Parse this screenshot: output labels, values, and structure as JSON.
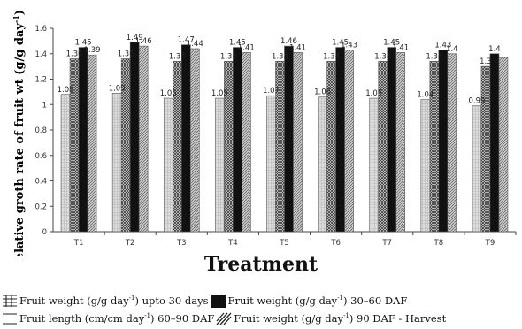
{
  "chart_data": {
    "type": "bar",
    "xlabel": "Treatment",
    "ylabel": "Relative groth rate of fruit wt (g/g day",
    "ylabel_sup": "-1",
    "ylabel_end": ")",
    "ylim": [
      0,
      1.6
    ],
    "yticks": [
      "0",
      "0.2",
      "0.4",
      "0.6",
      "0.8",
      "1",
      "1.2",
      "1.4",
      "1.6"
    ],
    "categories": [
      "T1",
      "T2",
      "T3",
      "T4",
      "T5",
      "T6",
      "T7",
      "T8",
      "T9"
    ],
    "series": [
      {
        "name": "Fruit weight (g/g day-1) upto 30 days",
        "pattern": "grid",
        "values": [
          1.08,
          1.09,
          1.05,
          1.05,
          1.07,
          1.06,
          1.05,
          1.04,
          0.99
        ]
      },
      {
        "name": "Fruit length (cm/cm day-1) 60-90 DAF",
        "pattern": "dots",
        "values": [
          1.36,
          1.36,
          1.34,
          1.34,
          1.34,
          1.34,
          1.34,
          1.34,
          1.3
        ]
      },
      {
        "name": "Fruit weight (g/g day-1) 30-60 DAF",
        "pattern": "solid",
        "values": [
          1.45,
          1.49,
          1.47,
          1.45,
          1.46,
          1.45,
          1.45,
          1.43,
          1.4
        ]
      },
      {
        "name": "Fruit weight (g/g day-1) 90 DAF - Harvest",
        "pattern": "hatch",
        "values": [
          1.39,
          1.46,
          1.44,
          1.41,
          1.41,
          1.43,
          1.41,
          1.4,
          1.37
        ]
      }
    ],
    "data_labels": [
      [
        "1.08",
        "1.09",
        "1.05",
        "1.05",
        "1.07",
        "1.06",
        "1.05",
        "1.04",
        "0.99"
      ],
      [
        "1.36",
        "1.36",
        "1.34",
        "1.34",
        "1.34",
        "1.34",
        "1.34",
        "1.34",
        "1.3"
      ],
      [
        "1.45",
        "1.49",
        "1.47",
        "1.45",
        "1.46",
        "1.45",
        "1.45",
        "1.43",
        "1.4"
      ],
      [
        "1.39",
        "1.46",
        "1.44",
        "1.41",
        "1.41",
        "1.43",
        "1.41",
        "1.4",
        ""
      ]
    ],
    "legend_placement": "bottom",
    "grid": false
  },
  "legend": {
    "upto30_a": "Fruit weight (g/g day",
    "upto30_sup": "-1",
    "upto30_b": ") upto 30 days",
    "d30_60_a": "Fruit weight (g/g day",
    "d30_60_sup": "-1",
    "d30_60_b": ") 30–60 DAF",
    "len60_90_a": "Fruit length (cm/cm day",
    "len60_90_sup": "-1",
    "len60_90_b": ") 60–90 DAF",
    "d90_a": "Fruit weight (g/g day",
    "d90_sup": "-1",
    "d90_b": ") 90 DAF - Harvest"
  }
}
